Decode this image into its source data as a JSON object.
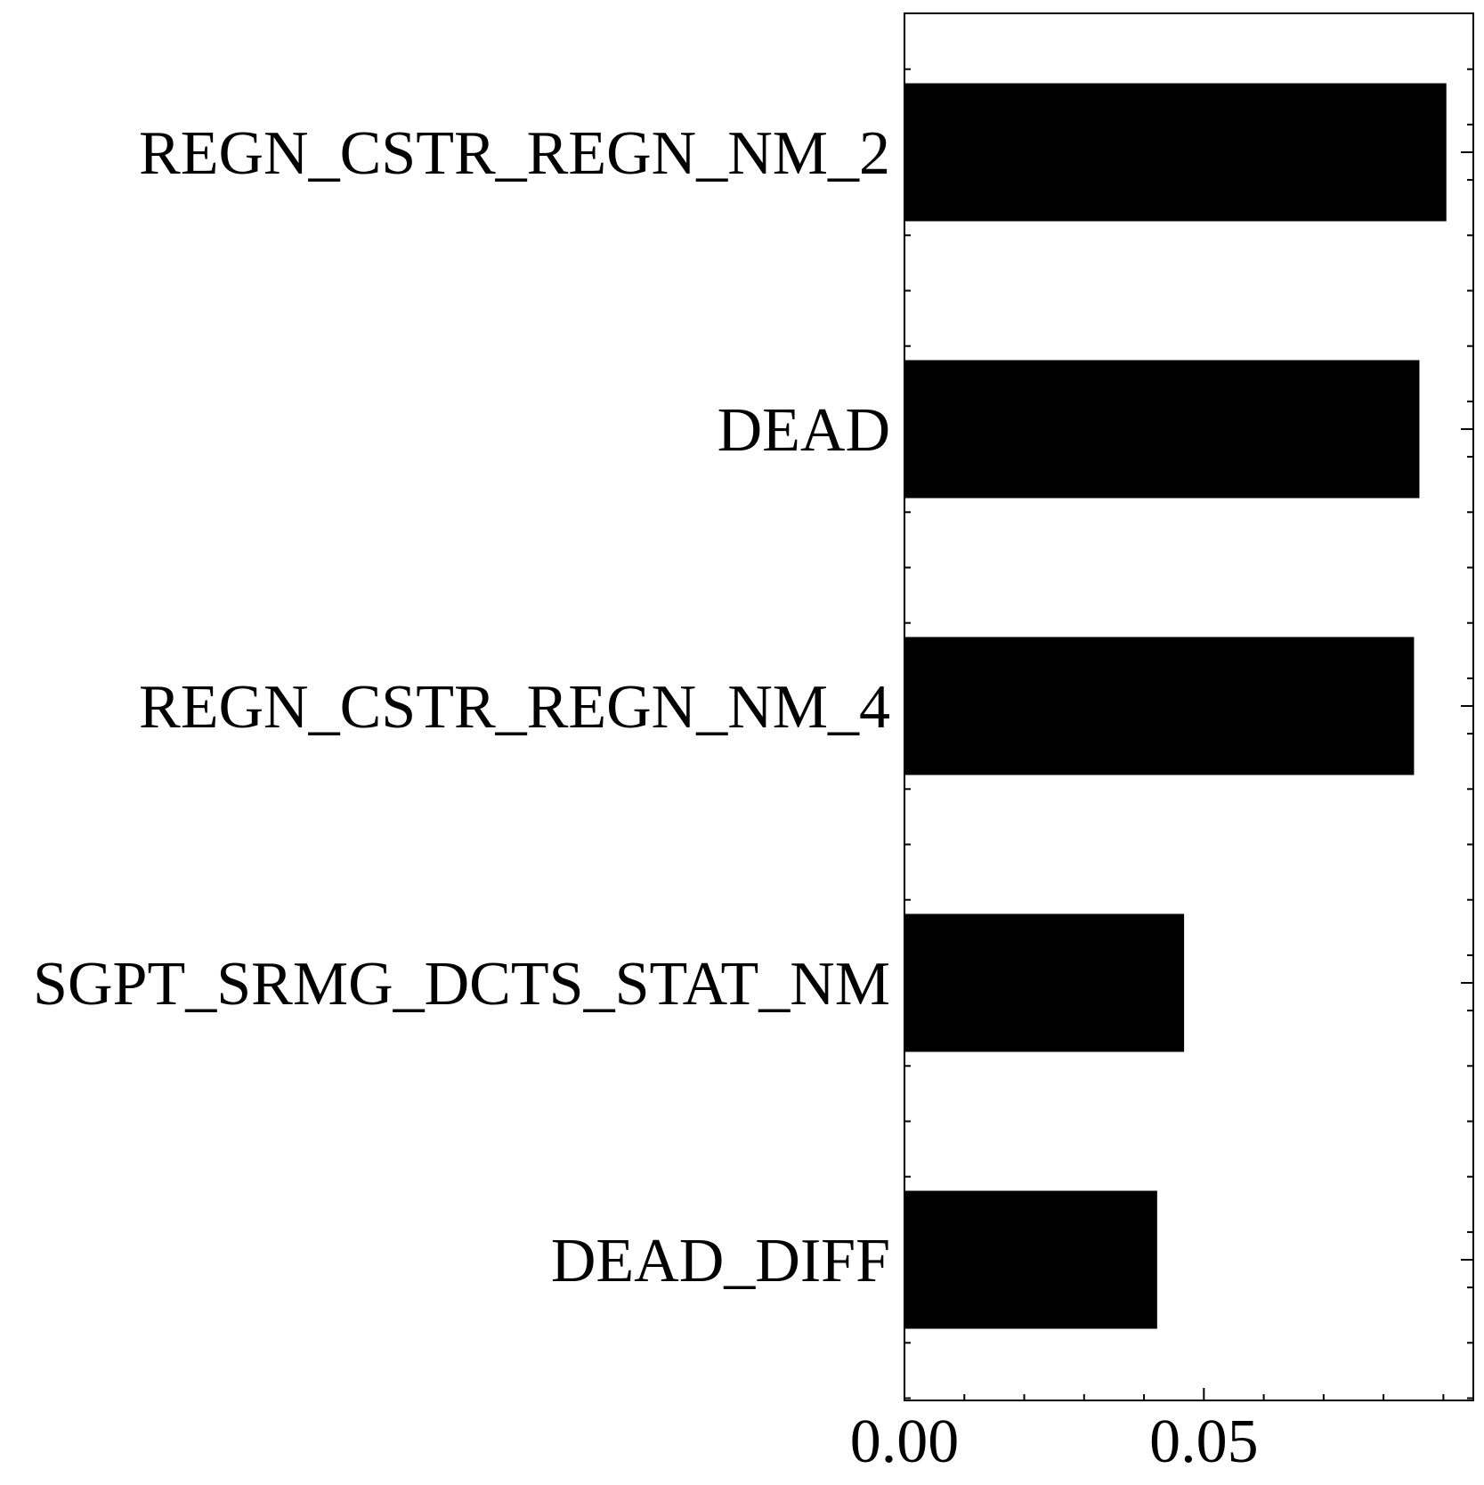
{
  "chart_data": {
    "type": "bar",
    "orientation": "horizontal",
    "categories": [
      "REGN_CSTR_REGN_NM_2",
      "DEAD",
      "REGN_CSTR_REGN_NM_4",
      "SGPT_SRMG_DCTS_STAT_NM",
      "DEAD_DIFF"
    ],
    "values": [
      0.0905,
      0.086,
      0.0851,
      0.0467,
      0.0422
    ],
    "xlim": [
      0,
      0.095
    ],
    "xticks": [
      0.0,
      0.05
    ],
    "xtick_labels": [
      "0.00",
      "0.05"
    ],
    "title": "",
    "xlabel": "",
    "ylabel": "",
    "grid": false,
    "bar_color": "#000000"
  }
}
